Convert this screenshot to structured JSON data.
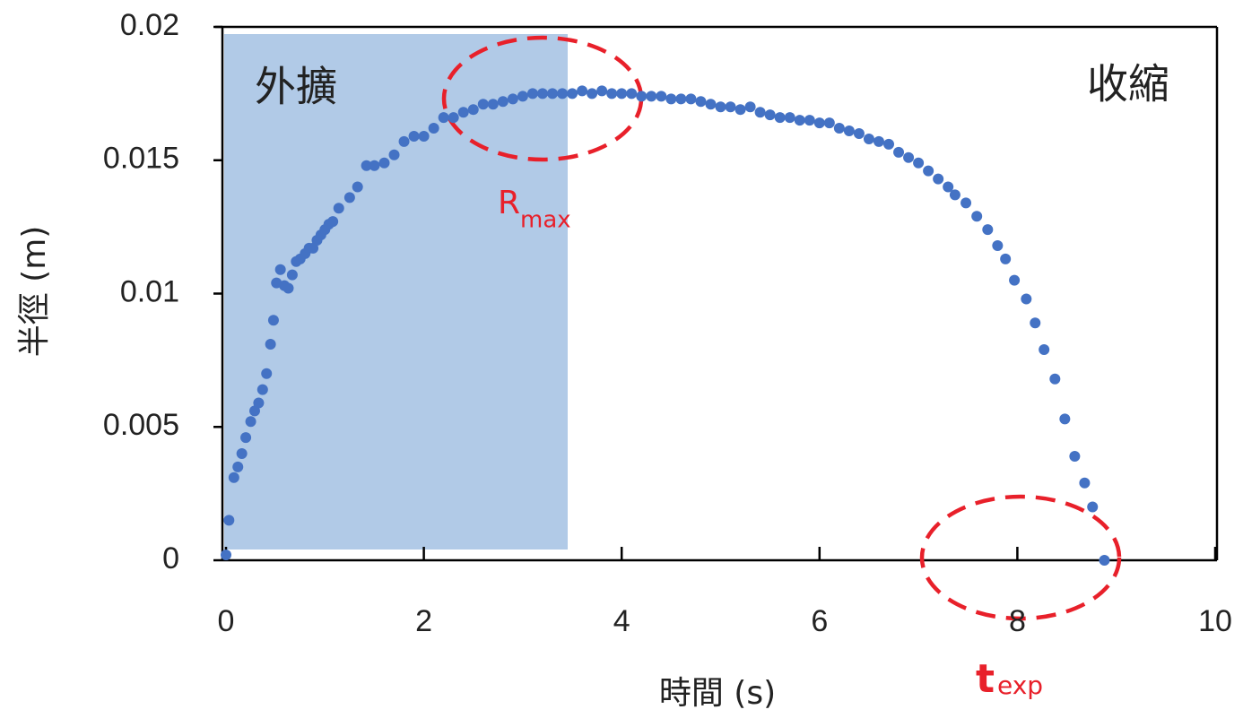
{
  "chart_data": {
    "type": "scatter",
    "x_label": "時間 (s)",
    "y_label": "半徑 (m)",
    "xlim": [
      0,
      10
    ],
    "xticks": [
      0,
      2,
      4,
      6,
      8,
      10
    ],
    "ylim": [
      0,
      0.02
    ],
    "yticks": [
      0,
      0.005,
      0.01,
      0.015,
      0.02
    ],
    "annotations": {
      "expand": "外擴",
      "contract": "收縮",
      "rmax": "R",
      "rmax_sub": "max",
      "texp": "t",
      "texp_sub": "exp"
    },
    "series": [
      {
        "color": "#4472c4",
        "x": [
          0,
          0.03,
          0.08,
          0.12,
          0.16,
          0.2,
          0.25,
          0.29,
          0.33,
          0.37,
          0.41,
          0.45,
          0.48,
          0.51,
          0.55,
          0.59,
          0.63,
          0.67,
          0.71,
          0.75,
          0.8,
          0.84,
          0.88,
          0.92,
          0.96,
          1.0,
          1.04,
          1.08,
          1.14,
          1.25,
          1.33,
          1.42,
          1.5,
          1.6,
          1.7,
          1.8,
          1.9,
          2.0,
          2.1,
          2.2,
          2.3,
          2.4,
          2.5,
          2.6,
          2.7,
          2.8,
          2.9,
          3.0,
          3.1,
          3.2,
          3.3,
          3.4,
          3.5,
          3.6,
          3.7,
          3.8,
          3.9,
          4.0,
          4.1,
          4.2,
          4.3,
          4.4,
          4.5,
          4.6,
          4.7,
          4.8,
          4.9,
          5.0,
          5.1,
          5.2,
          5.3,
          5.4,
          5.5,
          5.6,
          5.7,
          5.8,
          5.9,
          6.0,
          6.1,
          6.2,
          6.3,
          6.4,
          6.5,
          6.6,
          6.7,
          6.8,
          6.9,
          7.0,
          7.1,
          7.2,
          7.3,
          7.37,
          7.48,
          7.59,
          7.7,
          7.8,
          7.88,
          7.97,
          8.09,
          8.18,
          8.27,
          8.38,
          8.48,
          8.58,
          8.68,
          8.76,
          8.88
        ],
        "values": [
          0.0002,
          0.0015,
          0.0031,
          0.0035,
          0.004,
          0.0046,
          0.0052,
          0.0056,
          0.0059,
          0.0064,
          0.007,
          0.0081,
          0.009,
          0.0104,
          0.0109,
          0.0103,
          0.0102,
          0.0107,
          0.0112,
          0.0113,
          0.0115,
          0.0117,
          0.0117,
          0.012,
          0.0122,
          0.0124,
          0.0126,
          0.0127,
          0.0132,
          0.0136,
          0.014,
          0.0148,
          0.0148,
          0.0149,
          0.0152,
          0.0157,
          0.0159,
          0.0159,
          0.0162,
          0.0166,
          0.0166,
          0.0168,
          0.0169,
          0.0171,
          0.0171,
          0.0172,
          0.0173,
          0.0174,
          0.0175,
          0.0175,
          0.0175,
          0.0175,
          0.0175,
          0.0176,
          0.0175,
          0.0176,
          0.0175,
          0.0175,
          0.0175,
          0.0174,
          0.0174,
          0.0174,
          0.0173,
          0.0173,
          0.0173,
          0.0172,
          0.0171,
          0.017,
          0.017,
          0.0169,
          0.017,
          0.0168,
          0.0167,
          0.0166,
          0.0166,
          0.0165,
          0.0165,
          0.0164,
          0.0164,
          0.0162,
          0.0161,
          0.016,
          0.0158,
          0.0157,
          0.0156,
          0.0153,
          0.0151,
          0.0149,
          0.0146,
          0.0143,
          0.014,
          0.0137,
          0.0134,
          0.0129,
          0.0124,
          0.0118,
          0.0113,
          0.0105,
          0.0098,
          0.0089,
          0.0079,
          0.0068,
          0.0053,
          0.0039,
          0.0029,
          0.002,
          0
        ]
      }
    ]
  }
}
